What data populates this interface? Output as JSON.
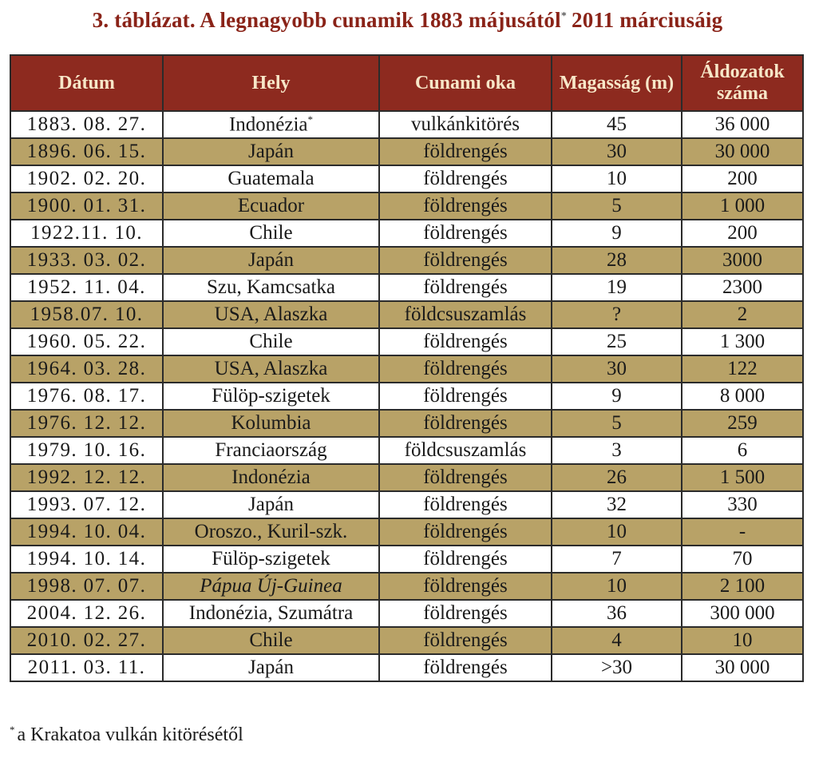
{
  "title": {
    "text": "3. táblázat. A legnagyobb cunamik 1883 májusától",
    "marker": "*",
    "text_end": "2011 márciusáig"
  },
  "table": {
    "headers": [
      "Dátum",
      "Hely",
      "Cunami oka",
      "Magasság (m)",
      "Áldozatok száma"
    ],
    "rows": [
      {
        "date": "1883. 08. 27.",
        "place": "Indonézia",
        "place_marker": "*",
        "cause": "vulkánkitörés",
        "height": "45",
        "victims": "36 000"
      },
      {
        "date": "1896. 06. 15.",
        "place": "Japán",
        "cause": "földrengés",
        "height": "30",
        "victims": "30 000"
      },
      {
        "date": "1902. 02. 20.",
        "place": "Guatemala",
        "cause": "földrengés",
        "height": "10",
        "victims": "200"
      },
      {
        "date": "1900. 01. 31.",
        "place": "Ecuador",
        "cause": "földrengés",
        "height": "5",
        "victims": "1 000"
      },
      {
        "date": "1922.11. 10.",
        "place": "Chile",
        "cause": "földrengés",
        "height": "9",
        "victims": "200"
      },
      {
        "date": "1933. 03. 02.",
        "place": "Japán",
        "cause": "földrengés",
        "height": "28",
        "victims": "3000"
      },
      {
        "date": "1952. 11. 04.",
        "place": "Szu, Kamcsatka",
        "cause": "földrengés",
        "height": "19",
        "victims": "2300"
      },
      {
        "date": "1958.07. 10.",
        "place": "USA, Alaszka",
        "cause": "földcsuszamlás",
        "height": "?",
        "victims": "2"
      },
      {
        "date": "1960. 05. 22.",
        "place": "Chile",
        "cause": "földrengés",
        "height": "25",
        "victims": "1 300"
      },
      {
        "date": "1964. 03. 28.",
        "place": "USA, Alaszka",
        "cause": "földrengés",
        "height": "30",
        "victims": "122"
      },
      {
        "date": "1976. 08. 17.",
        "place": "Fülöp-szigetek",
        "cause": "földrengés",
        "height": "9",
        "victims": "8 000"
      },
      {
        "date": "1976. 12. 12.",
        "place": "Kolumbia",
        "cause": "földrengés",
        "height": "5",
        "victims": "259"
      },
      {
        "date": "1979. 10. 16.",
        "place": "Franciaország",
        "cause": "földcsuszamlás",
        "height": "3",
        "victims": "6"
      },
      {
        "date": "1992. 12. 12.",
        "place": "Indonézia",
        "cause": "földrengés",
        "height": "26",
        "victims": "1 500"
      },
      {
        "date": "1993. 07. 12.",
        "place": "Japán",
        "cause": "földrengés",
        "height": "32",
        "victims": "330"
      },
      {
        "date": "1994. 10. 04.",
        "place": "Oroszo., Kuril-szk.",
        "cause": "földrengés",
        "height": "10",
        "victims": "-"
      },
      {
        "date": "1994. 10. 14.",
        "place": "Fülöp-szigetek",
        "cause": "földrengés",
        "height": "7",
        "victims": "70"
      },
      {
        "date": "1998. 07. 07.",
        "place": "Pápua Új-Guinea",
        "place_italic": true,
        "cause": "földrengés",
        "height": "10",
        "victims": "2 100"
      },
      {
        "date": "2004. 12. 26.",
        "place": "Indonézia, Szumátra",
        "cause": "földrengés",
        "height": "36",
        "victims": "300 000"
      },
      {
        "date": "2010. 02. 27.",
        "place": "Chile",
        "cause": "földrengés",
        "height": "4",
        "victims": "10"
      },
      {
        "date": "2011. 03. 11.",
        "place": "Japán",
        "cause": "földrengés",
        "height": ">30",
        "victims": "30 000"
      }
    ]
  },
  "footnote": {
    "marker": "*",
    "text": "a Krakatoa vulkán kitörésétől"
  },
  "colors": {
    "title": "#8a2318",
    "header_bg": "#8d2a1f",
    "header_text": "#f7e7c8",
    "row_alt_bg": "#b8a267",
    "row_bg": "#ffffff"
  }
}
